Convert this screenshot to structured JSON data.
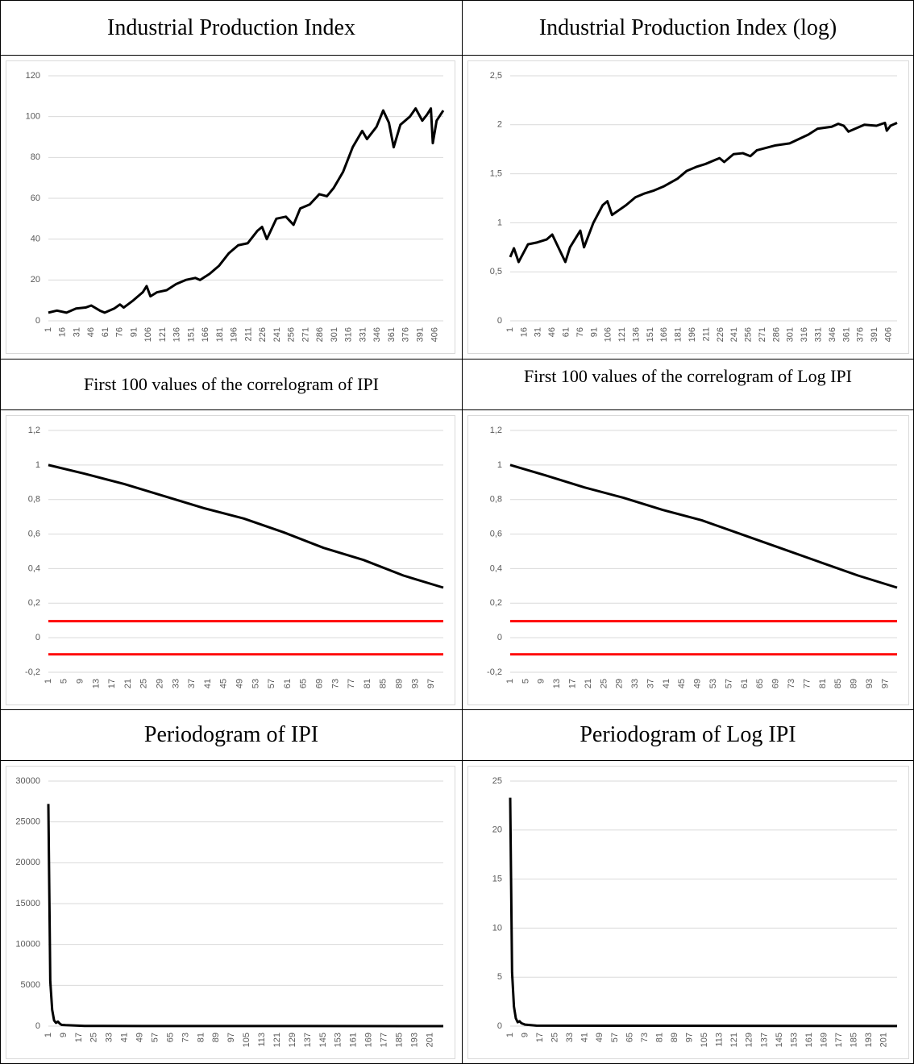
{
  "chart_data": [
    {
      "type": "line",
      "title": "Industrial Production Index",
      "xlim": [
        1,
        415
      ],
      "xticks": [
        1,
        16,
        31,
        46,
        61,
        76,
        91,
        106,
        121,
        136,
        151,
        166,
        181,
        196,
        211,
        226,
        241,
        256,
        271,
        286,
        301,
        316,
        331,
        346,
        361,
        376,
        391,
        406
      ],
      "ylim": [
        0,
        120
      ],
      "yticks": [
        0,
        20,
        40,
        60,
        80,
        100,
        120
      ],
      "grid": true,
      "series": [
        {
          "color": "#000000",
          "x": [
            1,
            10,
            20,
            30,
            40,
            46,
            55,
            60,
            70,
            76,
            80,
            90,
            100,
            104,
            108,
            115,
            125,
            135,
            145,
            155,
            160,
            170,
            180,
            190,
            200,
            210,
            220,
            225,
            230,
            240,
            250,
            258,
            265,
            275,
            285,
            293,
            300,
            310,
            320,
            330,
            335,
            345,
            352,
            358,
            363,
            370,
            380,
            386,
            393,
            398,
            402,
            404,
            408,
            415
          ],
          "values": [
            4,
            5,
            4,
            6,
            6.5,
            7.5,
            5,
            4,
            6,
            8,
            6.5,
            10,
            14,
            17,
            12,
            14,
            15,
            18,
            20,
            21,
            20,
            23,
            27,
            33,
            37,
            38,
            44,
            46,
            40,
            50,
            51,
            47,
            55,
            57,
            62,
            61,
            65,
            73,
            85,
            93,
            89,
            95,
            103,
            97,
            85,
            96,
            100,
            104,
            98,
            101,
            104,
            87,
            98,
            103
          ]
        }
      ]
    },
    {
      "type": "line",
      "title": "Industrial Production Index (log)",
      "xlim": [
        1,
        415
      ],
      "xticks": [
        1,
        16,
        31,
        46,
        61,
        76,
        91,
        106,
        121,
        136,
        151,
        166,
        181,
        196,
        211,
        226,
        241,
        256,
        271,
        286,
        301,
        316,
        331,
        346,
        361,
        376,
        391,
        406
      ],
      "ylim": [
        0,
        2.5
      ],
      "yticks": [
        0,
        {
          "value": 0.5,
          "label": "0,5"
        },
        1,
        {
          "value": 1.5,
          "label": "1,5"
        },
        2,
        {
          "value": 2.5,
          "label": "2,5"
        }
      ],
      "grid": true,
      "series": [
        {
          "color": "#000000",
          "x": [
            1,
            5,
            10,
            20,
            30,
            40,
            46,
            55,
            60,
            65,
            76,
            80,
            90,
            100,
            105,
            110,
            125,
            135,
            145,
            155,
            165,
            180,
            190,
            200,
            210,
            225,
            230,
            240,
            250,
            258,
            265,
            285,
            300,
            320,
            330,
            345,
            352,
            358,
            363,
            380,
            393,
            402,
            404,
            408,
            415
          ],
          "values": [
            0.65,
            0.74,
            0.6,
            0.78,
            0.8,
            0.83,
            0.88,
            0.7,
            0.6,
            0.75,
            0.92,
            0.75,
            1.0,
            1.18,
            1.22,
            1.08,
            1.18,
            1.26,
            1.3,
            1.33,
            1.37,
            1.45,
            1.53,
            1.57,
            1.6,
            1.66,
            1.62,
            1.7,
            1.71,
            1.68,
            1.74,
            1.79,
            1.81,
            1.9,
            1.96,
            1.98,
            2.01,
            1.99,
            1.93,
            2.0,
            1.99,
            2.02,
            1.94,
            1.99,
            2.02
          ]
        }
      ]
    },
    {
      "type": "line",
      "title": "First 100 values of the correlogram of IPI",
      "xlim": [
        1,
        100
      ],
      "xticks": [
        1,
        5,
        9,
        13,
        17,
        21,
        25,
        29,
        33,
        37,
        41,
        45,
        49,
        53,
        57,
        61,
        65,
        69,
        73,
        77,
        81,
        85,
        89,
        93,
        97
      ],
      "ylim": [
        -0.2,
        1.2
      ],
      "yticks": [
        {
          "value": -0.2,
          "label": "-0,2"
        },
        0,
        {
          "value": 0.2,
          "label": "0,2"
        },
        {
          "value": 0.4,
          "label": "0,4"
        },
        {
          "value": 0.6,
          "label": "0,6"
        },
        {
          "value": 0.8,
          "label": "0,8"
        },
        1,
        {
          "value": 1.2,
          "label": "1,2"
        }
      ],
      "grid": true,
      "series": [
        {
          "color": "#000000",
          "x": [
            1,
            10,
            20,
            30,
            40,
            50,
            60,
            70,
            80,
            90,
            100
          ],
          "values": [
            1,
            0.95,
            0.89,
            0.82,
            0.75,
            0.69,
            0.61,
            0.52,
            0.45,
            0.36,
            0.29
          ]
        },
        {
          "color": "#ff0000",
          "x": [
            1,
            100
          ],
          "values": [
            0.096,
            0.096
          ]
        },
        {
          "color": "#ff0000",
          "x": [
            1,
            100
          ],
          "values": [
            -0.096,
            -0.096
          ]
        }
      ]
    },
    {
      "type": "line",
      "title": "First 100 values of the correlogram of Log IPI",
      "xlim": [
        1,
        100
      ],
      "xticks": [
        1,
        5,
        9,
        13,
        17,
        21,
        25,
        29,
        33,
        37,
        41,
        45,
        49,
        53,
        57,
        61,
        65,
        69,
        73,
        77,
        81,
        85,
        89,
        93,
        97
      ],
      "ylim": [
        -0.2,
        1.2
      ],
      "yticks": [
        {
          "value": -0.2,
          "label": "-0,2"
        },
        0,
        {
          "value": 0.2,
          "label": "0,2"
        },
        {
          "value": 0.4,
          "label": "0,4"
        },
        {
          "value": 0.6,
          "label": "0,6"
        },
        {
          "value": 0.8,
          "label": "0,8"
        },
        1,
        {
          "value": 1.2,
          "label": "1,2"
        }
      ],
      "grid": true,
      "series": [
        {
          "color": "#000000",
          "x": [
            1,
            10,
            20,
            30,
            40,
            50,
            60,
            70,
            80,
            90,
            100
          ],
          "values": [
            1,
            0.94,
            0.87,
            0.81,
            0.74,
            0.68,
            0.6,
            0.52,
            0.44,
            0.36,
            0.29
          ]
        },
        {
          "color": "#ff0000",
          "x": [
            1,
            100
          ],
          "values": [
            0.096,
            0.096
          ]
        },
        {
          "color": "#ff0000",
          "x": [
            1,
            100
          ],
          "values": [
            -0.096,
            -0.096
          ]
        }
      ]
    },
    {
      "type": "line",
      "title": "Periodogram of IPI",
      "xlim": [
        1,
        208
      ],
      "xticks": [
        1,
        9,
        17,
        25,
        33,
        41,
        49,
        57,
        65,
        73,
        81,
        89,
        97,
        105,
        113,
        121,
        129,
        137,
        145,
        153,
        161,
        169,
        177,
        185,
        193,
        201
      ],
      "ylim": [
        0,
        30000
      ],
      "yticks": [
        0,
        5000,
        10000,
        15000,
        20000,
        25000,
        30000
      ],
      "grid": true,
      "series": [
        {
          "color": "#000000",
          "x": [
            1,
            2,
            3,
            4,
            5,
            6,
            7,
            8,
            10,
            15,
            20,
            50,
            208
          ],
          "values": [
            27200,
            5500,
            2000,
            700,
            400,
            550,
            300,
            150,
            120,
            80,
            30,
            10,
            5
          ]
        }
      ]
    },
    {
      "type": "line",
      "title": "Periodogram of Log IPI",
      "xlim": [
        1,
        208
      ],
      "xticks": [
        1,
        9,
        17,
        25,
        33,
        41,
        49,
        57,
        65,
        73,
        81,
        89,
        97,
        105,
        113,
        121,
        129,
        137,
        145,
        153,
        161,
        169,
        177,
        185,
        193,
        201
      ],
      "ylim": [
        0,
        25
      ],
      "yticks": [
        0,
        5,
        10,
        15,
        20,
        25
      ],
      "grid": true,
      "series": [
        {
          "color": "#000000",
          "x": [
            1,
            2,
            3,
            4,
            5,
            6,
            7,
            9,
            15,
            208
          ],
          "values": [
            23.3,
            5.5,
            2,
            0.8,
            0.4,
            0.5,
            0.3,
            0.15,
            0.05,
            0.01
          ]
        }
      ]
    }
  ]
}
